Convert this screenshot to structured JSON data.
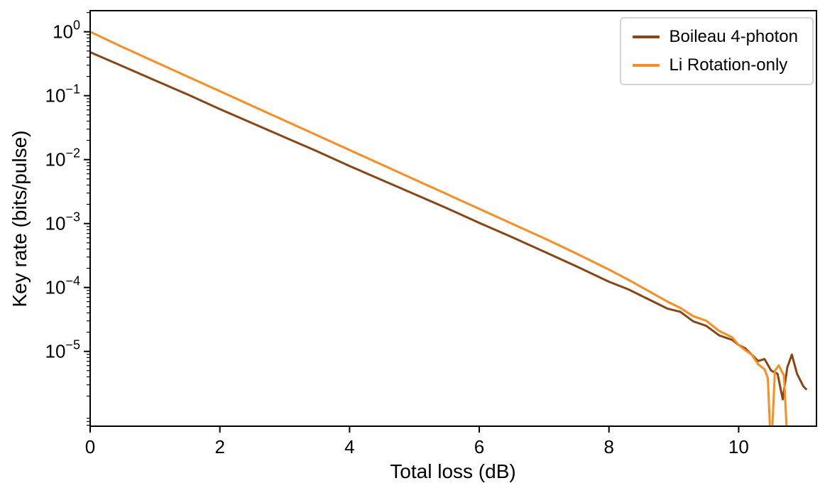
{
  "chart_data": {
    "type": "line",
    "title": "",
    "xlabel": "Total loss (dB)",
    "ylabel": "Key rate (bits/pulse)",
    "xlim": [
      0,
      11.2
    ],
    "y_scale": "log",
    "ylim_log10": [
      -6.17,
      0.33
    ],
    "xticks": [
      0,
      2,
      4,
      6,
      8,
      10
    ],
    "yticks_log10": [
      0,
      -1,
      -2,
      -3,
      -4,
      -5
    ],
    "grid": false,
    "legend_position": "upper right",
    "axis_color": "#000000",
    "background_color": "#ffffff",
    "series": [
      {
        "name": "Boileau 4-photon",
        "color": "#8B4513",
        "points_log10": [
          [
            0,
            -0.32
          ],
          [
            0.5,
            -0.54
          ],
          [
            1,
            -0.76
          ],
          [
            1.5,
            -0.98
          ],
          [
            2,
            -1.21
          ],
          [
            2.5,
            -1.43
          ],
          [
            3,
            -1.65
          ],
          [
            3.5,
            -1.87
          ],
          [
            4,
            -2.1
          ],
          [
            4.5,
            -2.32
          ],
          [
            5,
            -2.54
          ],
          [
            5.5,
            -2.76
          ],
          [
            6,
            -2.99
          ],
          [
            6.5,
            -3.21
          ],
          [
            7,
            -3.44
          ],
          [
            7.5,
            -3.67
          ],
          [
            8,
            -3.91
          ],
          [
            8.3,
            -4.03
          ],
          [
            8.6,
            -4.18
          ],
          [
            8.9,
            -4.33
          ],
          [
            9.1,
            -4.38
          ],
          [
            9.3,
            -4.53
          ],
          [
            9.5,
            -4.6
          ],
          [
            9.7,
            -4.75
          ],
          [
            9.9,
            -4.82
          ],
          [
            10,
            -4.9
          ],
          [
            10.1,
            -4.95
          ],
          [
            10.2,
            -5.05
          ],
          [
            10.3,
            -5.15
          ],
          [
            10.4,
            -5.12
          ],
          [
            10.5,
            -5.3
          ],
          [
            10.6,
            -5.35
          ],
          [
            10.68,
            -5.75
          ],
          [
            10.75,
            -5.25
          ],
          [
            10.82,
            -5.05
          ],
          [
            10.9,
            -5.35
          ],
          [
            11,
            -5.55
          ],
          [
            11.05,
            -5.6
          ]
        ]
      },
      {
        "name": "Li Rotation-only",
        "color": "#FF8C1A",
        "points_log10": [
          [
            0,
            0
          ],
          [
            0.5,
            -0.24
          ],
          [
            1,
            -0.47
          ],
          [
            1.5,
            -0.7
          ],
          [
            2,
            -0.93
          ],
          [
            2.5,
            -1.16
          ],
          [
            3,
            -1.39
          ],
          [
            3.5,
            -1.62
          ],
          [
            4,
            -1.85
          ],
          [
            4.5,
            -2.08
          ],
          [
            5,
            -2.31
          ],
          [
            5.5,
            -2.54
          ],
          [
            6,
            -2.77
          ],
          [
            6.5,
            -3.0
          ],
          [
            7,
            -3.23
          ],
          [
            7.5,
            -3.47
          ],
          [
            8,
            -3.72
          ],
          [
            8.3,
            -3.88
          ],
          [
            8.6,
            -4.05
          ],
          [
            8.9,
            -4.22
          ],
          [
            9.1,
            -4.32
          ],
          [
            9.3,
            -4.45
          ],
          [
            9.5,
            -4.52
          ],
          [
            9.7,
            -4.68
          ],
          [
            9.9,
            -4.78
          ],
          [
            10,
            -4.9
          ],
          [
            10.1,
            -4.98
          ],
          [
            10.2,
            -5.05
          ],
          [
            10.3,
            -5.2
          ],
          [
            10.4,
            -5.28
          ],
          [
            10.45,
            -5.42
          ],
          [
            10.5,
            -6.6
          ],
          [
            10.56,
            -5.3
          ],
          [
            10.62,
            -5.22
          ],
          [
            10.7,
            -5.38
          ],
          [
            10.76,
            -6.6
          ]
        ]
      }
    ],
    "legend_order": [
      "Boileau 4-photon",
      "Li Rotation-only"
    ]
  }
}
